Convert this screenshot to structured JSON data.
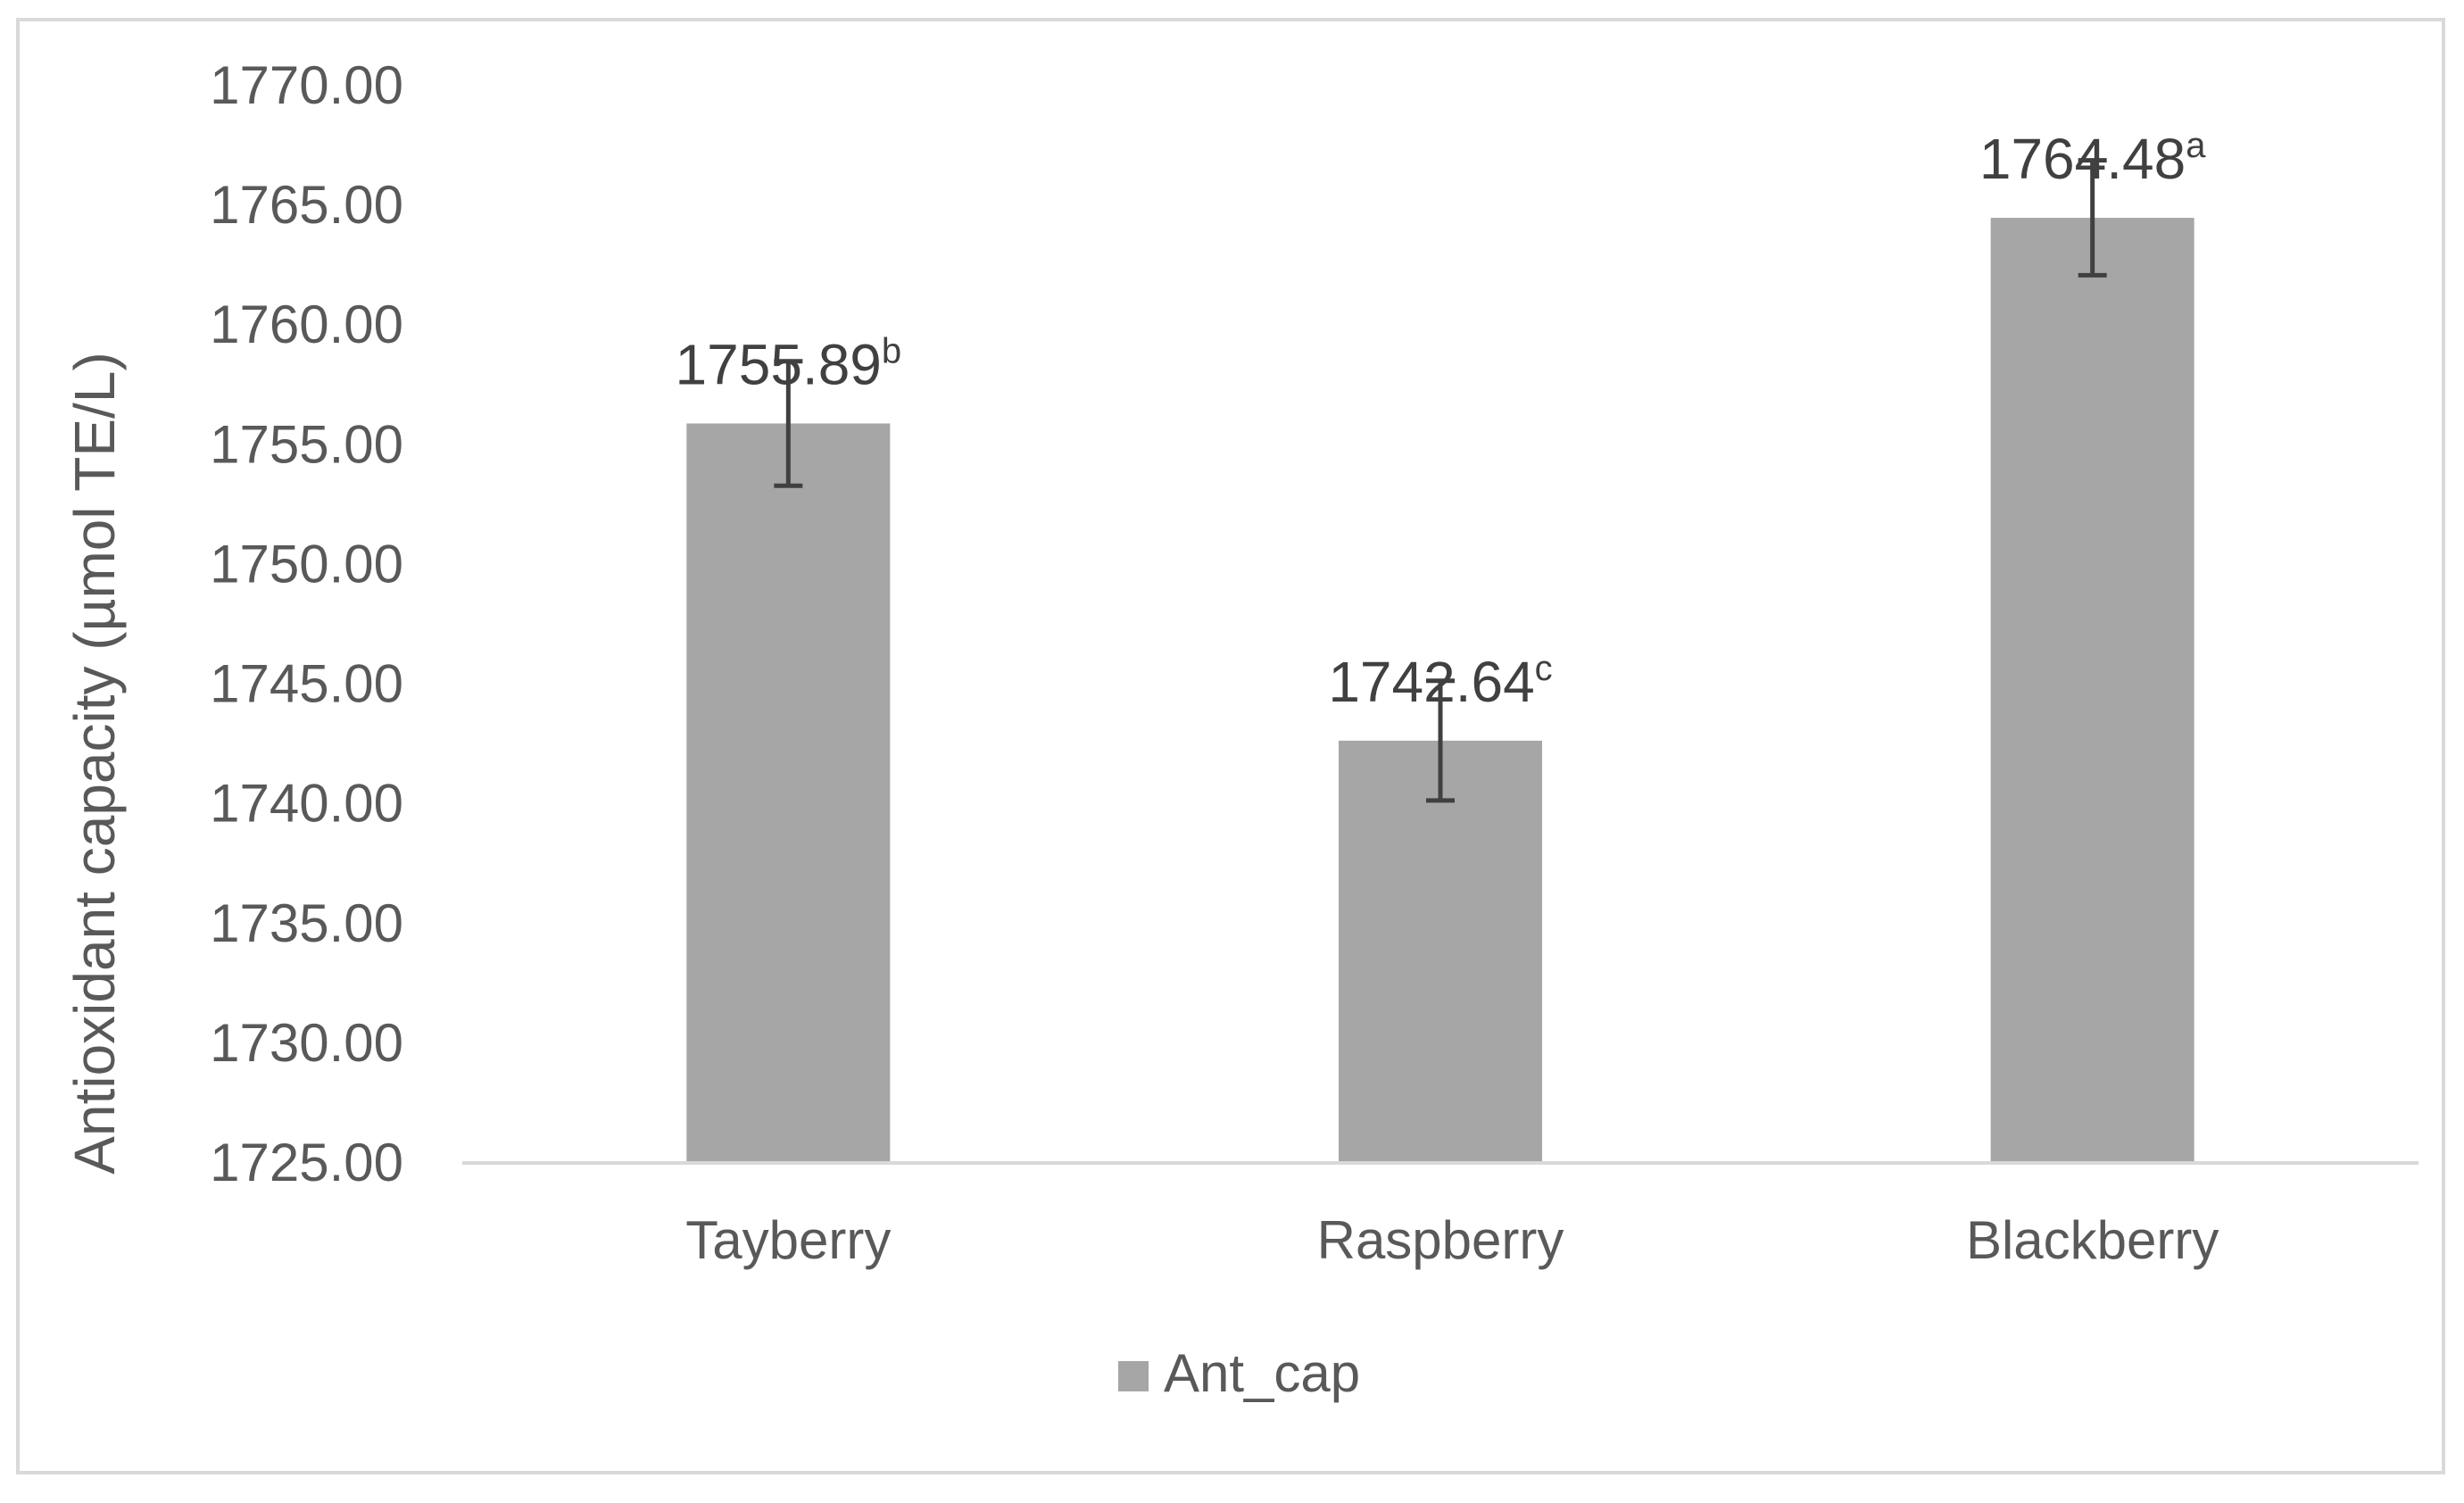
{
  "chart_data": {
    "type": "bar",
    "categories": [
      "Tayberry",
      "Raspberry",
      "Blackberry"
    ],
    "series": [
      {
        "name": "Ant_cap",
        "values": [
          1755.89,
          1742.64,
          1764.48
        ],
        "error": [
          2.6,
          2.5,
          2.4
        ],
        "data_labels": [
          "1755.89",
          "1742.64",
          "1764.48"
        ],
        "superscripts": [
          "b",
          "c",
          "a"
        ]
      }
    ],
    "ylabel": "Antioxidant capacity (µmol TE/L)",
    "xlabel": "",
    "ylim": [
      1725,
      1770
    ],
    "yticks": [
      "1725.00",
      "1730.00",
      "1735.00",
      "1740.00",
      "1745.00",
      "1750.00",
      "1755.00",
      "1760.00",
      "1765.00",
      "1770.00"
    ],
    "grid": false,
    "legend_position": "bottom",
    "colors": {
      "bar": "#a6a6a6",
      "error_bar": "#404040",
      "axis": "#d9d9d9"
    }
  }
}
